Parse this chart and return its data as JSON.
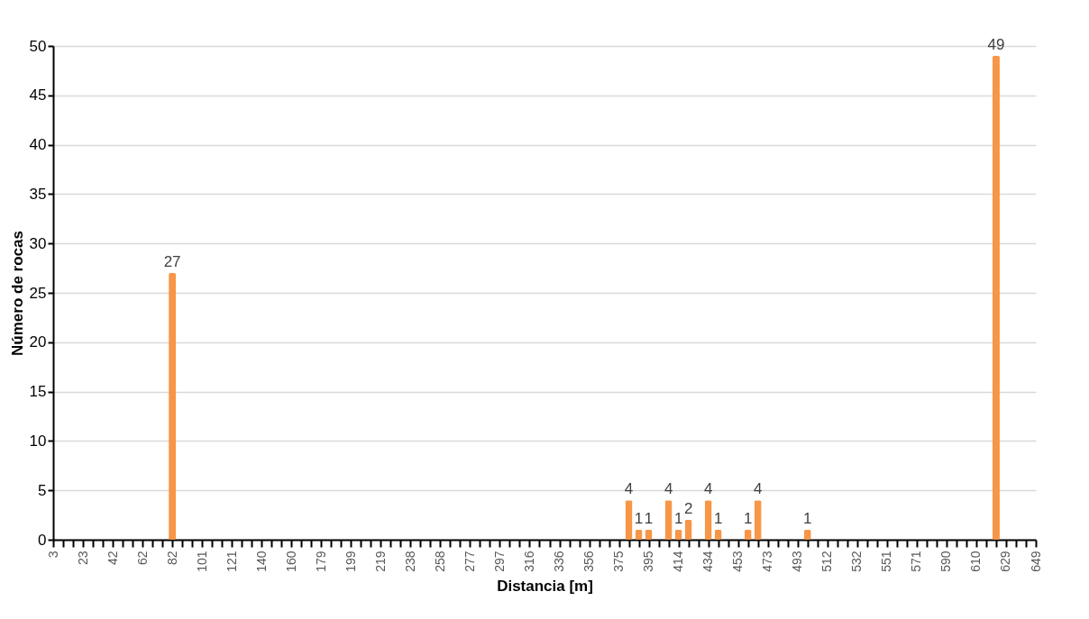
{
  "chart_data": {
    "type": "bar",
    "xlabel": "Distancia [m]",
    "ylabel": "Número de rocas",
    "categories": [
      "3",
      null,
      null,
      "23",
      null,
      null,
      "42",
      null,
      null,
      "62",
      null,
      null,
      "82",
      null,
      null,
      "101",
      null,
      null,
      "121",
      null,
      null,
      "140",
      null,
      null,
      "160",
      null,
      null,
      "179",
      null,
      null,
      "199",
      null,
      null,
      "219",
      null,
      null,
      "238",
      null,
      null,
      "258",
      null,
      null,
      "277",
      null,
      null,
      "297",
      null,
      null,
      "316",
      null,
      null,
      "336",
      null,
      null,
      "356",
      null,
      null,
      "375",
      null,
      null,
      "395",
      null,
      null,
      "414",
      null,
      null,
      "434",
      null,
      null,
      "453",
      null,
      null,
      "473",
      null,
      null,
      "493",
      null,
      null,
      "512",
      null,
      null,
      "532",
      null,
      null,
      "551",
      null,
      null,
      "571",
      null,
      null,
      "590",
      null,
      null,
      "610",
      null,
      null,
      "629",
      null,
      null,
      "649"
    ],
    "values": [
      null,
      null,
      null,
      null,
      null,
      null,
      null,
      null,
      null,
      null,
      null,
      null,
      27,
      null,
      null,
      null,
      null,
      null,
      null,
      null,
      null,
      null,
      null,
      null,
      null,
      null,
      null,
      null,
      null,
      null,
      null,
      null,
      null,
      null,
      null,
      null,
      null,
      null,
      null,
      null,
      null,
      null,
      null,
      null,
      null,
      null,
      null,
      null,
      null,
      null,
      null,
      null,
      null,
      null,
      null,
      null,
      null,
      null,
      4,
      1,
      1,
      null,
      4,
      1,
      2,
      null,
      4,
      1,
      null,
      null,
      1,
      4,
      null,
      null,
      null,
      null,
      1,
      null,
      null,
      null,
      null,
      null,
      null,
      null,
      null,
      null,
      null,
      null,
      null,
      null,
      null,
      null,
      null,
      null,
      null,
      49,
      null,
      null,
      null,
      null
    ],
    "color": "#f79646",
    "ylim": [
      0,
      50
    ],
    "yticks": [
      0,
      5,
      10,
      15,
      20,
      25,
      30,
      35,
      40,
      45,
      50
    ],
    "grid": true,
    "data_labels": true
  }
}
